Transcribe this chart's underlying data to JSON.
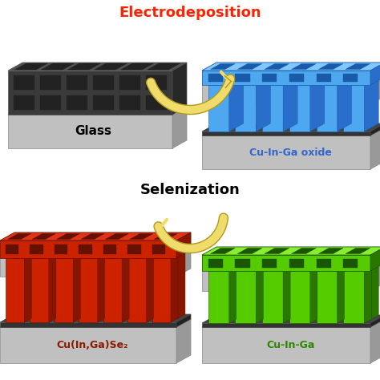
{
  "bg_color": "#ffffff",
  "electrodeposition_label": "Electrodeposition",
  "electrodeposition_color": "#ff2200",
  "selenization_label": "Selenization",
  "glass_label": "Glass",
  "cu_in_ga_oxide_label": "Cu-In-Ga oxide",
  "cu_in_ga_oxide_color": "#3366cc",
  "cu_in_ga_se2_label": "Cu(In,Ga)Se₂",
  "cu_in_ga_se2_color": "#8b1a00",
  "cu_in_ga_label": "Cu-In-Ga",
  "cu_in_ga_color": "#2d8800",
  "glass_face": "#c0c0c0",
  "glass_top": "#d8d8d8",
  "glass_side": "#999999",
  "dark_face": "#3a3a3a",
  "dark_top": "#505050",
  "dark_side": "#282828",
  "blue_face": "#4da8f0",
  "blue_top": "#80c8ff",
  "blue_side": "#2a6ecc",
  "blue_dark": "#1a5aaa",
  "red_face": "#cc2200",
  "red_top": "#e03318",
  "red_side": "#881500",
  "red_dark": "#661000",
  "green_face": "#55cc00",
  "green_top": "#88ee33",
  "green_side": "#2a7700",
  "green_dark": "#1a5500",
  "arrow_fill": "#f0dc6a",
  "arrow_edge": "#b09820",
  "label_fontsize": 11,
  "sublabel_fontsize": 9
}
